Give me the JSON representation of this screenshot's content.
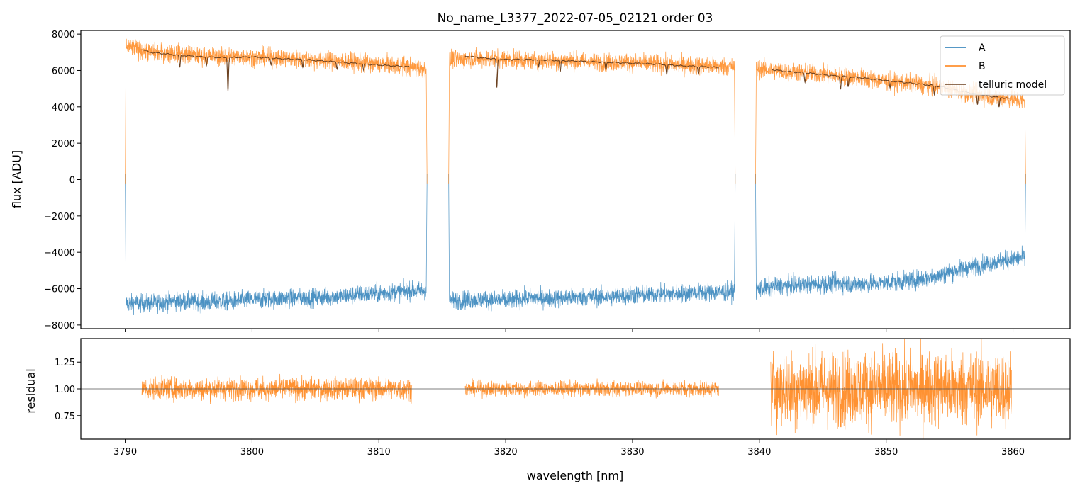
{
  "chart_data": [
    {
      "type": "line",
      "panel": "top",
      "title": "No_name_L3377_2022-07-05_02121  order 03",
      "xlabel": "",
      "ylabel": "flux [ADU]",
      "xlim": [
        3786.5,
        3864.5
      ],
      "ylim": [
        -8200,
        8200
      ],
      "yticks": [
        -8000,
        -6000,
        -4000,
        -2000,
        0,
        2000,
        4000,
        6000,
        8000
      ],
      "ytick_labels": [
        "−8000",
        "−6000",
        "−4000",
        "−2000",
        "0",
        "2000",
        "4000",
        "6000",
        "8000"
      ],
      "legend": {
        "placement": "top-right",
        "entries": [
          "A",
          "B",
          "telluric model"
        ]
      },
      "segments": [
        {
          "start": 3790.0,
          "end": 3813.8
        },
        {
          "start": 3815.5,
          "end": 3838.1
        },
        {
          "start": 3839.7,
          "end": 3861.0
        }
      ],
      "series": [
        {
          "name": "A",
          "color": "#1f77b4",
          "x": [
            3790.2,
            3792,
            3794,
            3796,
            3798,
            3800,
            3802,
            3804,
            3806,
            3808,
            3810,
            3812,
            3813.6,
            3815.7,
            3818,
            3820,
            3822,
            3824,
            3826,
            3828,
            3830,
            3832,
            3834,
            3836,
            3837.9,
            3839.9,
            3842,
            3844,
            3846,
            3848,
            3850,
            3852,
            3854,
            3856,
            3858,
            3860,
            3860.8
          ],
          "y": [
            -6800,
            -6800,
            -6700,
            -6750,
            -6700,
            -6600,
            -6550,
            -6500,
            -6450,
            -6350,
            -6250,
            -6150,
            -6100,
            -6650,
            -6600,
            -6650,
            -6500,
            -6550,
            -6450,
            -6450,
            -6350,
            -6300,
            -6250,
            -6200,
            -6150,
            -6000,
            -5850,
            -5800,
            -5700,
            -5750,
            -5650,
            -5550,
            -5300,
            -4900,
            -4600,
            -4400,
            -4300
          ],
          "noise": 300
        },
        {
          "name": "B",
          "color": "#ff7f0e",
          "x": [
            3790.2,
            3792,
            3794,
            3796,
            3798,
            3800,
            3802,
            3804,
            3806,
            3808,
            3810,
            3812,
            3813.6,
            3815.7,
            3818,
            3820,
            3822,
            3824,
            3826,
            3828,
            3830,
            3832,
            3834,
            3836,
            3837.9,
            3839.9,
            3842,
            3844,
            3846,
            3848,
            3850,
            3852,
            3854,
            3856,
            3858,
            3860,
            3860.8
          ],
          "y": [
            7300,
            7000,
            6950,
            6800,
            6750,
            6750,
            6700,
            6600,
            6550,
            6450,
            6350,
            6250,
            6100,
            6600,
            6650,
            6650,
            6550,
            6550,
            6500,
            6450,
            6450,
            6350,
            6300,
            6250,
            6200,
            6100,
            5950,
            5850,
            5700,
            5600,
            5400,
            5300,
            5100,
            4800,
            4600,
            4400,
            4300
          ],
          "noise": 300
        },
        {
          "name": "telluric model",
          "color": "#6b4120",
          "x": [
            3791.3,
            3792,
            3794,
            3796,
            3798,
            3800,
            3802,
            3804,
            3806,
            3808,
            3810,
            3812.4,
            3816.8,
            3818,
            3820,
            3822,
            3824,
            3826,
            3828,
            3830,
            3832,
            3834,
            3836,
            3836.8,
            3841.0,
            3842,
            3844,
            3846,
            3848,
            3850,
            3852,
            3854,
            3856,
            3858,
            3859.8
          ],
          "y": [
            7150,
            7000,
            6850,
            6750,
            6700,
            6750,
            6650,
            6600,
            6500,
            6400,
            6300,
            6200,
            6800,
            6700,
            6600,
            6600,
            6550,
            6500,
            6450,
            6400,
            6350,
            6250,
            6200,
            6150,
            6050,
            5950,
            5850,
            5700,
            5600,
            5450,
            5300,
            5150,
            4850,
            4600,
            4450
          ],
          "absorption_lines": [
            {
              "x": 3794.3,
              "depth": 700
            },
            {
              "x": 3796.4,
              "depth": 450
            },
            {
              "x": 3798.1,
              "depth": 1800
            },
            {
              "x": 3801.5,
              "depth": 350
            },
            {
              "x": 3804.0,
              "depth": 400
            },
            {
              "x": 3806.7,
              "depth": 350
            },
            {
              "x": 3808.8,
              "depth": 400
            },
            {
              "x": 3819.3,
              "depth": 1600
            },
            {
              "x": 3822.6,
              "depth": 400
            },
            {
              "x": 3824.3,
              "depth": 650
            },
            {
              "x": 3827.9,
              "depth": 450
            },
            {
              "x": 3832.7,
              "depth": 500
            },
            {
              "x": 3835.2,
              "depth": 400
            },
            {
              "x": 3843.6,
              "depth": 500
            },
            {
              "x": 3846.4,
              "depth": 700
            },
            {
              "x": 3847.0,
              "depth": 550
            },
            {
              "x": 3850.3,
              "depth": 400
            },
            {
              "x": 3853.8,
              "depth": 500
            },
            {
              "x": 3857.2,
              "depth": 600
            },
            {
              "x": 3858.9,
              "depth": 550
            }
          ]
        }
      ]
    },
    {
      "type": "line",
      "panel": "bottom",
      "title": "",
      "xlabel": "wavelength [nm]",
      "ylabel": "residual",
      "xlim": [
        3786.5,
        3864.5
      ],
      "ylim": [
        0.53,
        1.47
      ],
      "xticks": [
        3790,
        3800,
        3810,
        3820,
        3830,
        3840,
        3850,
        3860
      ],
      "xtick_labels": [
        "3790",
        "3800",
        "3810",
        "3820",
        "3830",
        "3840",
        "3850",
        "3860"
      ],
      "yticks": [
        0.75,
        1.0,
        1.25
      ],
      "ytick_labels": [
        "0.75",
        "1.00",
        "1.25"
      ],
      "reference_line": 1.0,
      "series": [
        {
          "name": "",
          "color": "#ff7f0e",
          "segments": [
            {
              "start": 3791.3,
              "end": 3812.6,
              "center": 1.0,
              "noise": 0.065
            },
            {
              "start": 3816.8,
              "end": 3836.8,
              "center": 1.0,
              "noise": 0.045
            },
            {
              "start": 3840.9,
              "end": 3859.9,
              "center": 1.0,
              "noise": 0.22
            }
          ]
        }
      ]
    }
  ]
}
